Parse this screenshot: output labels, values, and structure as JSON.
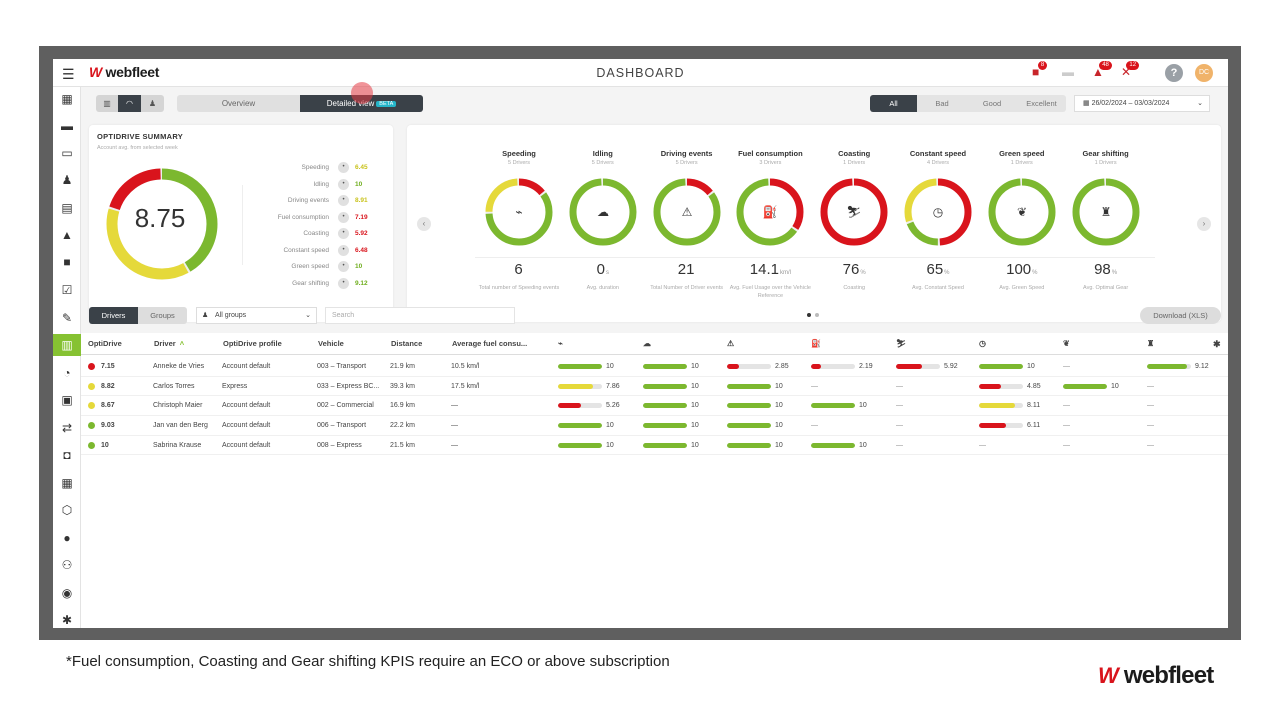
{
  "topbar": {
    "title": "DASHBOARD",
    "logo_text": "webfleet",
    "notifications": [
      {
        "icon": "truck-alert-icon",
        "count": "8"
      },
      {
        "icon": "car-icon",
        "count": ""
      },
      {
        "icon": "alert-user-icon",
        "count": "48"
      },
      {
        "icon": "wrench-icon",
        "count": "12"
      }
    ],
    "help": "?",
    "avatar_initials": "DC"
  },
  "sidebar": {
    "items": [
      {
        "icon": "map-icon",
        "glyph": "▦"
      },
      {
        "icon": "car-icon",
        "glyph": "▬"
      },
      {
        "icon": "bus-icon",
        "glyph": "▭"
      },
      {
        "icon": "driver-icon",
        "glyph": "♟"
      },
      {
        "icon": "document-icon",
        "glyph": "▤"
      },
      {
        "icon": "warning-icon",
        "glyph": "▲"
      },
      {
        "icon": "camera-icon",
        "glyph": "■"
      },
      {
        "icon": "checklist-icon",
        "glyph": "☑"
      },
      {
        "icon": "tools-icon",
        "glyph": "✎"
      },
      {
        "icon": "dashboard-icon",
        "glyph": "▥"
      },
      {
        "icon": "gauge-icon",
        "glyph": "◔"
      },
      {
        "icon": "report-icon",
        "glyph": "▣"
      },
      {
        "icon": "transfer-icon",
        "glyph": "⇄"
      },
      {
        "icon": "fuel-icon",
        "glyph": "◘"
      },
      {
        "icon": "calendar-icon",
        "glyph": "▦"
      },
      {
        "icon": "geofence-icon",
        "glyph": "⬡"
      },
      {
        "icon": "user-icon",
        "glyph": "●"
      },
      {
        "icon": "network-icon",
        "glyph": "⚇"
      },
      {
        "icon": "settings-icon",
        "glyph": "◉"
      },
      {
        "icon": "gear-icon",
        "glyph": "✱"
      }
    ]
  },
  "toolbar": {
    "tabs": [
      "Overview",
      "Detailed view"
    ],
    "beta": "BETA",
    "filters": [
      "All",
      "Bad",
      "Good",
      "Excellent"
    ],
    "date_range": "26/02/2024 – 03/03/2024"
  },
  "summary": {
    "title": "OPTIDRIVE SUMMARY",
    "subtitle": "Account avg. from selected week",
    "score": "8.75",
    "metrics": [
      {
        "label": "Speeding",
        "value": "6.45",
        "color": "#c9c21b",
        "icon": "speedometer-icon"
      },
      {
        "label": "Idling",
        "value": "10",
        "color": "#6fae1d",
        "icon": "idling-icon"
      },
      {
        "label": "Driving events",
        "value": "8.91",
        "color": "#c9c21b",
        "icon": "driving-events-icon"
      },
      {
        "label": "Fuel consumption",
        "value": "7.19",
        "color": "#d9141c",
        "icon": "fuel-icon"
      },
      {
        "label": "Coasting",
        "value": "5.92",
        "color": "#d9141c",
        "icon": "coasting-icon"
      },
      {
        "label": "Constant speed",
        "value": "6.48",
        "color": "#d9141c",
        "icon": "constant-speed-icon"
      },
      {
        "label": "Green speed",
        "value": "10",
        "color": "#6fae1d",
        "icon": "leaf-icon"
      },
      {
        "label": "Gear shifting",
        "value": "9.12",
        "color": "#6fae1d",
        "icon": "gear-shift-icon"
      }
    ],
    "donut": [
      {
        "share": 0.42,
        "color": "#7cb82f"
      },
      {
        "share": 0.38,
        "color": "#e5d93a"
      },
      {
        "share": 0.2,
        "color": "#d9141c"
      }
    ]
  },
  "kpis": [
    {
      "title": "Speeding",
      "sub": "5 Drivers",
      "value": "6",
      "unit": "",
      "desc": "Total number of Speeding events",
      "icon": "speedometer-icon",
      "glyph": "⌁",
      "green": 0.6,
      "yellow": 0.25,
      "red": 0.15
    },
    {
      "title": "Idling",
      "sub": "5 Drivers",
      "value": "0",
      "unit": "s",
      "desc": "Avg. duration",
      "icon": "idling-icon",
      "glyph": "☁",
      "green": 1,
      "yellow": 0,
      "red": 0
    },
    {
      "title": "Driving events",
      "sub": "5 Drivers",
      "value": "21",
      "unit": "",
      "desc": "Total Number of Driver events",
      "icon": "driving-events-icon",
      "glyph": "⚠",
      "green": 0.85,
      "yellow": 0,
      "red": 0.15
    },
    {
      "title": "Fuel consumption",
      "sub": "3 Drivers",
      "value": "14.1",
      "unit": "km/l",
      "desc": "Avg. Fuel Usage over the Vehicle Reference",
      "icon": "fuel-icon",
      "glyph": "⛽",
      "green": 0.65,
      "yellow": 0,
      "red": 0.35
    },
    {
      "title": "Coasting",
      "sub": "1 Drivers",
      "value": "76",
      "unit": "%",
      "desc": "Coasting",
      "icon": "coasting-icon",
      "glyph": "⛷",
      "green": 0,
      "yellow": 0,
      "red": 1
    },
    {
      "title": "Constant speed",
      "sub": "4 Drivers",
      "value": "65",
      "unit": "%",
      "desc": "Avg. Constant Speed",
      "icon": "constant-speed-icon",
      "glyph": "◷",
      "green": 0.2,
      "yellow": 0.3,
      "red": 0.5
    },
    {
      "title": "Green speed",
      "sub": "1 Drivers",
      "value": "100",
      "unit": "%",
      "desc": "Avg. Green Speed",
      "icon": "leaf-icon",
      "glyph": "❦",
      "green": 1,
      "yellow": 0,
      "red": 0
    },
    {
      "title": "Gear shifting",
      "sub": "1 Drivers",
      "value": "98",
      "unit": "%",
      "desc": "Avg. Optimal Gear",
      "icon": "gear-shift-icon",
      "glyph": "♜",
      "green": 1,
      "yellow": 0,
      "red": 0
    }
  ],
  "table_toolbar": {
    "tabs": [
      "Drivers",
      "Groups"
    ],
    "group_select": "All groups",
    "search_placeholder": "Search",
    "download": "Download (XLS)"
  },
  "table": {
    "columns": [
      "OptiDrive",
      "Driver",
      "OptiDrive profile",
      "Vehicle",
      "Distance",
      "Average fuel consu..."
    ],
    "kpi_column_icons": [
      "speedometer-icon",
      "idling-icon",
      "driving-events-icon",
      "fuel-icon",
      "coasting-icon",
      "constant-speed-icon",
      "leaf-icon",
      "gear-shift-icon"
    ],
    "kpi_column_glyphs": [
      "⌁",
      "☁",
      "⚠",
      "⛽",
      "⛷",
      "◷",
      "❦",
      "♜"
    ],
    "rows": [
      {
        "score": "7.15",
        "status": "#d9141c",
        "driver": "Anneke de Vries",
        "profile": "Account default",
        "vehicle": "003 – Transport",
        "distance": "21.9 km",
        "fuel": "10.5 km/l",
        "kpis": [
          {
            "v": "10",
            "f": 1,
            "c": "#7cb82f"
          },
          {
            "v": "10",
            "f": 1,
            "c": "#7cb82f"
          },
          {
            "v": "2.85",
            "f": 0.28,
            "c": "#d9141c"
          },
          {
            "v": "2.19",
            "f": 0.22,
            "c": "#d9141c"
          },
          {
            "v": "5.92",
            "f": 0.59,
            "c": "#d9141c"
          },
          {
            "v": "10",
            "f": 1,
            "c": "#7cb82f"
          },
          {
            "v": "—",
            "f": null
          },
          {
            "v": "9.12",
            "f": 0.91,
            "c": "#7cb82f"
          }
        ]
      },
      {
        "score": "8.82",
        "status": "#e5d93a",
        "driver": "Carlos Torres",
        "profile": "Express",
        "vehicle": "033 – Express BC...",
        "distance": "39.3 km",
        "fuel": "17.5 km/l",
        "kpis": [
          {
            "v": "7.86",
            "f": 0.79,
            "c": "#e5d93a"
          },
          {
            "v": "10",
            "f": 1,
            "c": "#7cb82f"
          },
          {
            "v": "10",
            "f": 1,
            "c": "#7cb82f"
          },
          {
            "v": "—",
            "f": null
          },
          {
            "v": "—",
            "f": null
          },
          {
            "v": "4.85",
            "f": 0.49,
            "c": "#d9141c"
          },
          {
            "v": "10",
            "f": 1,
            "c": "#7cb82f"
          },
          {
            "v": "—",
            "f": null
          }
        ]
      },
      {
        "score": "8.67",
        "status": "#e5d93a",
        "driver": "Christoph Maier",
        "profile": "Account default",
        "vehicle": "002 – Commercial",
        "distance": "16.9 km",
        "fuel": "—",
        "kpis": [
          {
            "v": "5.26",
            "f": 0.53,
            "c": "#d9141c"
          },
          {
            "v": "10",
            "f": 1,
            "c": "#7cb82f"
          },
          {
            "v": "10",
            "f": 1,
            "c": "#7cb82f"
          },
          {
            "v": "10",
            "f": 1,
            "c": "#7cb82f"
          },
          {
            "v": "—",
            "f": null
          },
          {
            "v": "8.11",
            "f": 0.81,
            "c": "#e5d93a"
          },
          {
            "v": "—",
            "f": null
          },
          {
            "v": "—",
            "f": null
          }
        ]
      },
      {
        "score": "9.03",
        "status": "#7cb82f",
        "driver": "Jan van den Berg",
        "profile": "Account default",
        "vehicle": "006 – Transport",
        "distance": "22.2 km",
        "fuel": "—",
        "kpis": [
          {
            "v": "10",
            "f": 1,
            "c": "#7cb82f"
          },
          {
            "v": "10",
            "f": 1,
            "c": "#7cb82f"
          },
          {
            "v": "10",
            "f": 1,
            "c": "#7cb82f"
          },
          {
            "v": "—",
            "f": null
          },
          {
            "v": "—",
            "f": null
          },
          {
            "v": "6.11",
            "f": 0.61,
            "c": "#d9141c"
          },
          {
            "v": "—",
            "f": null
          },
          {
            "v": "—",
            "f": null
          }
        ]
      },
      {
        "score": "10",
        "status": "#7cb82f",
        "driver": "Sabrina Krause",
        "profile": "Account default",
        "vehicle": "008 – Express",
        "distance": "21.5 km",
        "fuel": "—",
        "kpis": [
          {
            "v": "10",
            "f": 1,
            "c": "#7cb82f"
          },
          {
            "v": "10",
            "f": 1,
            "c": "#7cb82f"
          },
          {
            "v": "10",
            "f": 1,
            "c": "#7cb82f"
          },
          {
            "v": "10",
            "f": 1,
            "c": "#7cb82f"
          },
          {
            "v": "—",
            "f": null
          },
          {
            "v": "—",
            "f": null
          },
          {
            "v": "—",
            "f": null
          },
          {
            "v": "—",
            "f": null
          }
        ]
      }
    ]
  },
  "footnote": "*Fuel consumption, Coasting and Gear shifting KPIS require an ECO or above subscription",
  "brand": "webfleet"
}
